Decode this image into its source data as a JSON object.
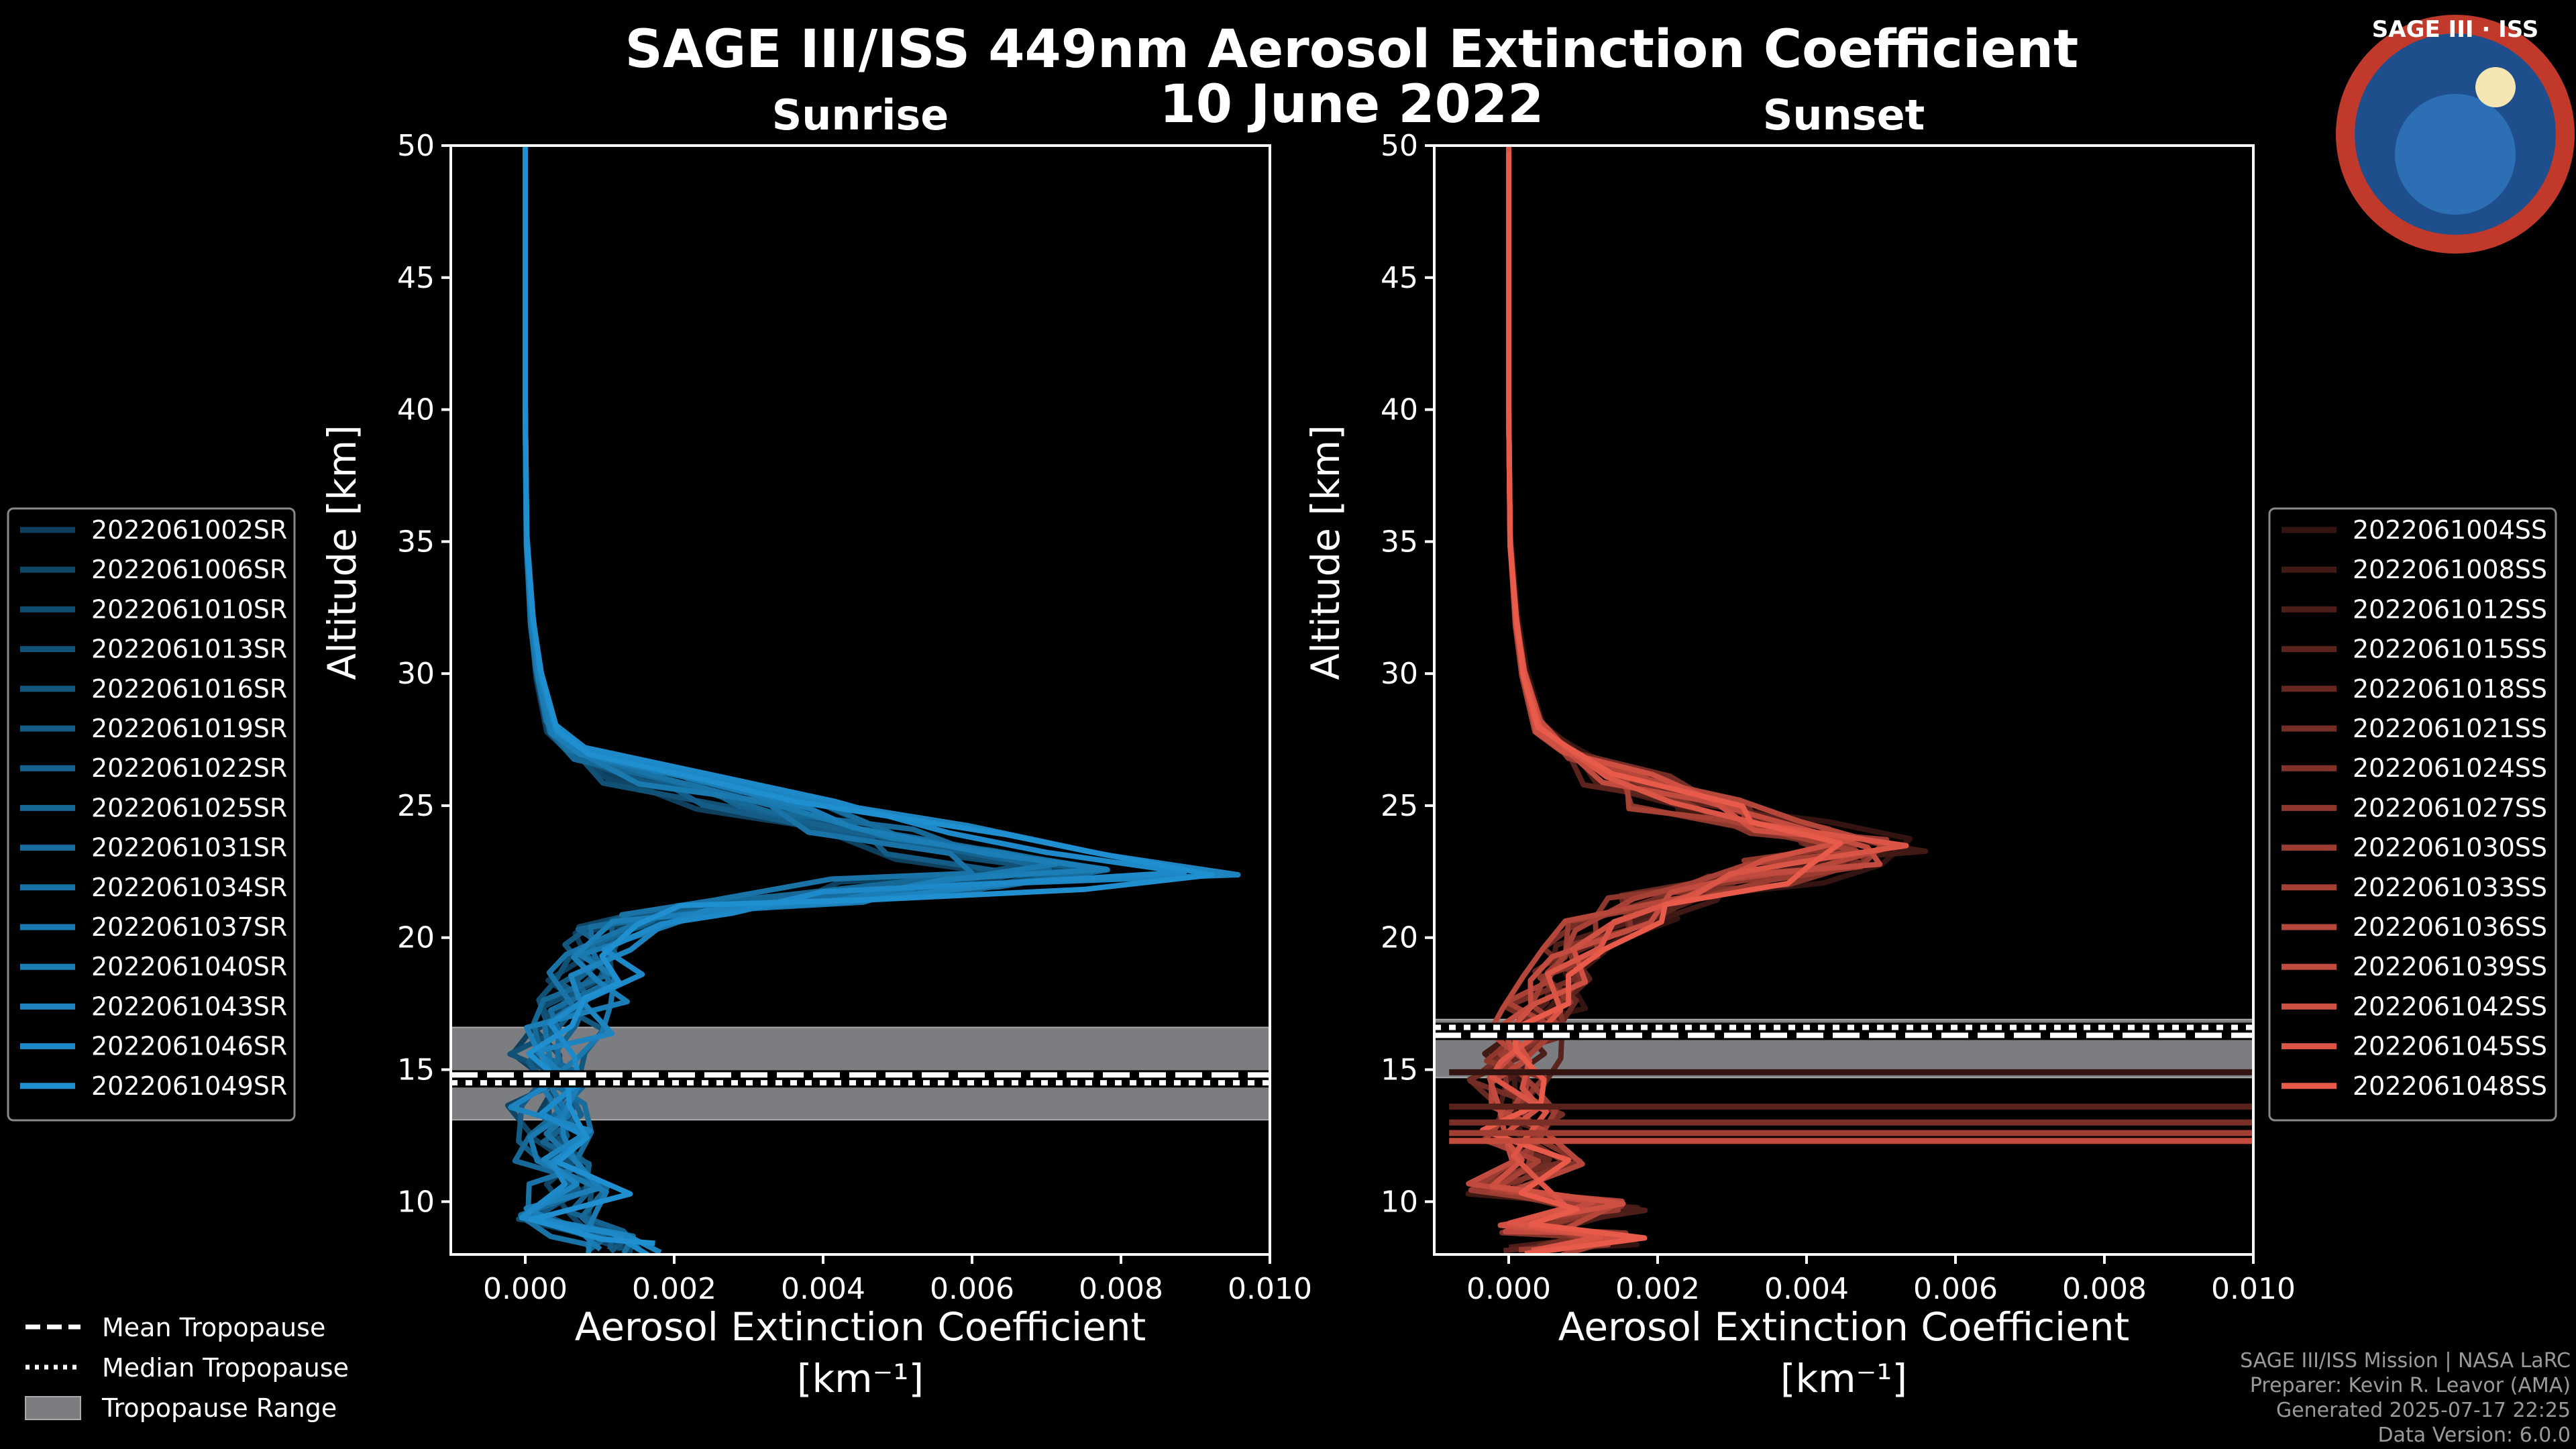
{
  "title": "SAGE III/ISS 449nm Aerosol Extinction Coefficient",
  "date": "10 June 2022",
  "logo": {
    "text": "SAGE III · ISS",
    "colors": {
      "ring": "#c0392b",
      "field": "#1f4e8c"
    }
  },
  "colors": {
    "sunrise": "#1f8fd0",
    "sunset": "#e85a4a",
    "tropo_band": "#7b7d80"
  },
  "chart_data": [
    {
      "type": "line",
      "name": "sunrise",
      "subtitle": "Sunrise",
      "xlabel": "Aerosol Extinction Coefficient",
      "xunit": "[km⁻¹]",
      "ylabel": "Altitude [km]",
      "xlim": [
        -0.001,
        0.01
      ],
      "ylim": [
        8,
        50
      ],
      "xticks": [
        "0.000",
        "0.002",
        "0.004",
        "0.006",
        "0.008",
        "0.010"
      ],
      "yticks": [
        "10",
        "15",
        "20",
        "25",
        "30",
        "35",
        "40",
        "45",
        "50"
      ],
      "tropopause": {
        "mean": 14.8,
        "median": 14.5,
        "range": [
          13.1,
          16.6
        ]
      },
      "base_profile": [
        [
          0.0,
          50
        ],
        [
          0.0,
          40
        ],
        [
          2e-05,
          35
        ],
        [
          0.0001,
          32
        ],
        [
          0.0002,
          30
        ],
        [
          0.0004,
          28
        ],
        [
          0.0008,
          27
        ],
        [
          0.002,
          26
        ],
        [
          0.0038,
          25
        ],
        [
          0.0055,
          24
        ],
        [
          0.0072,
          23.2
        ],
        [
          0.0085,
          22.6
        ],
        [
          0.0068,
          22.0
        ],
        [
          0.0045,
          21.5
        ],
        [
          0.0025,
          21.0
        ],
        [
          0.0015,
          20.4
        ],
        [
          0.0012,
          19.5
        ],
        [
          0.0011,
          18.5
        ],
        [
          0.0009,
          17.5
        ],
        [
          0.0006,
          16.5
        ],
        [
          0.0004,
          15.5
        ],
        [
          0.0005,
          14.5
        ],
        [
          0.0003,
          13.5
        ],
        [
          0.0006,
          12.5
        ],
        [
          0.0004,
          11.5
        ],
        [
          0.0008,
          10.5
        ],
        [
          0.0005,
          9.5
        ],
        [
          0.001,
          8.7
        ],
        [
          0.0015,
          8.2
        ]
      ],
      "series": [
        {
          "name": "2022061002SR",
          "scale": 0.72,
          "seed": 1
        },
        {
          "name": "2022061006SR",
          "scale": 0.78,
          "seed": 2
        },
        {
          "name": "2022061010SR",
          "scale": 0.85,
          "seed": 3
        },
        {
          "name": "2022061013SR",
          "scale": 0.8,
          "seed": 4
        },
        {
          "name": "2022061016SR",
          "scale": 0.9,
          "seed": 5
        },
        {
          "name": "2022061019SR",
          "scale": 0.76,
          "seed": 6
        },
        {
          "name": "2022061022SR",
          "scale": 0.88,
          "seed": 7
        },
        {
          "name": "2022061025SR",
          "scale": 0.82,
          "seed": 8
        },
        {
          "name": "2022061031SR",
          "scale": 0.95,
          "seed": 9
        },
        {
          "name": "2022061034SR",
          "scale": 0.7,
          "seed": 10
        },
        {
          "name": "2022061037SR",
          "scale": 0.86,
          "seed": 11
        },
        {
          "name": "2022061040SR",
          "scale": 0.92,
          "seed": 12
        },
        {
          "name": "2022061043SR",
          "scale": 1.05,
          "seed": 13
        },
        {
          "name": "2022061046SR",
          "scale": 1.0,
          "seed": 14
        },
        {
          "name": "2022061049SR",
          "scale": 1.08,
          "seed": 15
        }
      ]
    },
    {
      "type": "line",
      "name": "sunset",
      "subtitle": "Sunset",
      "xlabel": "Aerosol Extinction Coefficient",
      "xunit": "[km⁻¹]",
      "ylabel": "Altitude [km]",
      "xlim": [
        -0.001,
        0.01
      ],
      "ylim": [
        8,
        50
      ],
      "xticks": [
        "0.000",
        "0.002",
        "0.004",
        "0.006",
        "0.008",
        "0.010"
      ],
      "yticks": [
        "10",
        "15",
        "20",
        "25",
        "30",
        "35",
        "40",
        "45",
        "50"
      ],
      "tropopause": {
        "mean": 16.3,
        "median": 16.6,
        "range": [
          14.7,
          16.9
        ]
      },
      "base_profile": [
        [
          0.0,
          50
        ],
        [
          0.0,
          40
        ],
        [
          2e-05,
          35
        ],
        [
          0.0001,
          32
        ],
        [
          0.0002,
          30
        ],
        [
          0.0004,
          28
        ],
        [
          0.0008,
          27
        ],
        [
          0.0016,
          26
        ],
        [
          0.0026,
          25
        ],
        [
          0.0038,
          24.2
        ],
        [
          0.0048,
          23.5
        ],
        [
          0.0042,
          22.8
        ],
        [
          0.0032,
          22.2
        ],
        [
          0.0022,
          21.5
        ],
        [
          0.0014,
          20.5
        ],
        [
          0.0009,
          19.5
        ],
        [
          0.0006,
          18.5
        ],
        [
          0.0004,
          17.5
        ],
        [
          0.0003,
          16.5
        ],
        [
          0.0002,
          15.5
        ],
        [
          0.0,
          14.5
        ],
        [
          0.0003,
          13.5
        ],
        [
          0.0,
          12.5
        ],
        [
          0.0005,
          11.5
        ],
        [
          0.0,
          10.5
        ],
        [
          0.0012,
          9.8
        ],
        [
          0.0002,
          9.0
        ],
        [
          0.0014,
          8.6
        ],
        [
          0.0005,
          8.2
        ]
      ],
      "spikes": [
        [
          14.9,
          0.0105
        ],
        [
          13.6,
          0.0105
        ],
        [
          13.0,
          0.0105
        ],
        [
          12.6,
          0.0105
        ],
        [
          12.3,
          0.0105
        ]
      ],
      "series": [
        {
          "name": "2022061004SS",
          "scale": 1.2,
          "seed": 21
        },
        {
          "name": "2022061008SS",
          "scale": 1.05,
          "seed": 22
        },
        {
          "name": "2022061012SS",
          "scale": 1.1,
          "seed": 23
        },
        {
          "name": "2022061015SS",
          "scale": 0.95,
          "seed": 24
        },
        {
          "name": "2022061018SS",
          "scale": 1.0,
          "seed": 25
        },
        {
          "name": "2022061021SS",
          "scale": 0.92,
          "seed": 26
        },
        {
          "name": "2022061024SS",
          "scale": 1.02,
          "seed": 27
        },
        {
          "name": "2022061027SS",
          "scale": 0.9,
          "seed": 28
        },
        {
          "name": "2022061030SS",
          "scale": 1.0,
          "seed": 29
        },
        {
          "name": "2022061033SS",
          "scale": 0.88,
          "seed": 30
        },
        {
          "name": "2022061036SS",
          "scale": 0.96,
          "seed": 31
        },
        {
          "name": "2022061039SS",
          "scale": 1.06,
          "seed": 32
        },
        {
          "name": "2022061042SS",
          "scale": 0.94,
          "seed": 33
        },
        {
          "name": "2022061045SS",
          "scale": 1.04,
          "seed": 34
        },
        {
          "name": "2022061048SS",
          "scale": 0.98,
          "seed": 35
        }
      ]
    }
  ],
  "key_legend": [
    "Mean Tropopause",
    "Median Tropopause",
    "Tropopause Range"
  ],
  "credits": [
    "SAGE III/ISS Mission | NASA LaRC",
    "Preparer: Kevin R. Leavor (AMA)",
    "Generated 2025-07-17 22:25",
    "Data Version: 6.0.0"
  ]
}
